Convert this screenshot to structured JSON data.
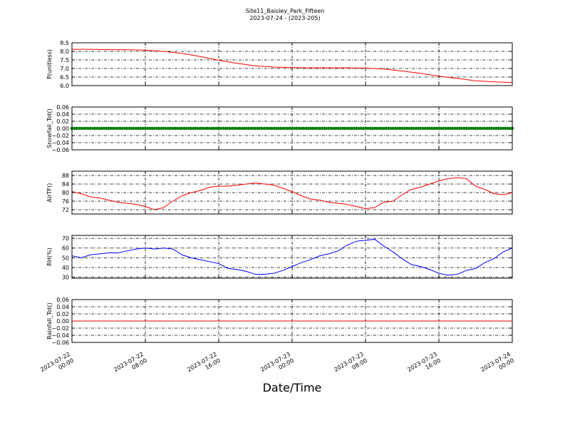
{
  "figure": {
    "title": "Site11_Baisley_Park_Fifteen",
    "subtitle": "2023-07-24 - (2023-205)",
    "xlabel": "Date/Time"
  },
  "x_ticks": [
    [
      "2023-07-22",
      "00:00"
    ],
    [
      "2023-07-22",
      "08:00"
    ],
    [
      "2023-07-22",
      "16:00"
    ],
    [
      "2023-07-23",
      "00:00"
    ],
    [
      "2023-07-23",
      "08:00"
    ],
    [
      "2023-07-23",
      "16:00"
    ],
    [
      "2023-07-24",
      "00:00"
    ]
  ],
  "colors": {
    "p": "#ff0000",
    "snow": "#008000",
    "air": "#ff0000",
    "rh": "#0000ff",
    "rain": "#ff0000"
  },
  "chart_data": [
    {
      "type": "line",
      "ylabel": "P(unitless)",
      "ylim": [
        6.0,
        8.5
      ],
      "yticks": [
        "6.0",
        "6.5",
        "7.0",
        "7.5",
        "8.0",
        "8.5"
      ],
      "x_hours": [
        0,
        2,
        4,
        6,
        8,
        10,
        12,
        14,
        16,
        18,
        20,
        22,
        24,
        26,
        28,
        30,
        32,
        34,
        36,
        38,
        40,
        42,
        44,
        46,
        48
      ],
      "series": [
        {
          "values": [
            8.12,
            8.12,
            8.1,
            8.1,
            8.07,
            8.0,
            7.88,
            7.7,
            7.48,
            7.3,
            7.15,
            7.08,
            7.05,
            7.04,
            7.04,
            7.04,
            7.02,
            6.97,
            6.85,
            6.72,
            6.55,
            6.42,
            6.28,
            6.22,
            6.18
          ]
        }
      ],
      "grid": true
    },
    {
      "type": "scatter",
      "ylabel": "Snowfall_Tot()",
      "ylim": [
        -0.06,
        0.06
      ],
      "yticks": [
        "−0.06",
        "−0.04",
        "−0.02",
        "0.00",
        "0.02",
        "0.04",
        "0.06"
      ],
      "x_hours": [
        0,
        48
      ],
      "series": [
        {
          "values": [
            0.0,
            0.0
          ]
        }
      ],
      "grid": true
    },
    {
      "type": "line",
      "ylabel": "AirTF()",
      "ylim": [
        70,
        90
      ],
      "yticks": [
        "72",
        "76",
        "80",
        "84",
        "88"
      ],
      "x_hours": [
        0,
        1,
        2,
        3,
        4,
        5,
        6,
        7,
        8,
        9,
        10,
        11,
        12,
        13,
        14,
        15,
        16,
        17,
        18,
        19,
        20,
        21,
        22,
        23,
        24,
        25,
        26,
        27,
        28,
        29,
        30,
        31,
        32,
        33,
        34,
        35,
        36,
        37,
        38,
        39,
        40,
        41,
        42,
        43,
        44,
        45,
        46,
        47,
        48
      ],
      "series": [
        {
          "values": [
            80.5,
            79.5,
            78,
            77.5,
            76.5,
            75.5,
            75,
            74.5,
            73.5,
            72,
            73,
            76,
            78.5,
            80,
            81,
            82.5,
            83,
            83,
            83.5,
            84,
            84.5,
            84,
            83.5,
            82,
            80.5,
            78.5,
            77,
            76.5,
            75.5,
            75,
            74.5,
            73.5,
            72.5,
            73,
            75.5,
            76,
            79,
            81.5,
            82.5,
            84,
            85.5,
            86.5,
            87,
            86.5,
            83,
            81.5,
            79.5,
            79,
            80
          ]
        }
      ],
      "grid": true
    },
    {
      "type": "line",
      "ylabel": "RH(%)",
      "ylim": [
        29,
        73
      ],
      "yticks": [
        "30",
        "40",
        "50",
        "60",
        "70"
      ],
      "x_hours": [
        0,
        1,
        2,
        3,
        4,
        5,
        6,
        7,
        8,
        9,
        10,
        11,
        12,
        13,
        14,
        15,
        16,
        17,
        18,
        19,
        20,
        21,
        22,
        23,
        24,
        25,
        26,
        27,
        28,
        29,
        30,
        31,
        32,
        33,
        34,
        35,
        36,
        37,
        38,
        39,
        40,
        41,
        42,
        43,
        44,
        45,
        46,
        47,
        48
      ],
      "series": [
        {
          "values": [
            52,
            50,
            53,
            54,
            55,
            55,
            57,
            59,
            60,
            59,
            60,
            59,
            53,
            50,
            48,
            46,
            44,
            39,
            38,
            36,
            33,
            33,
            34,
            37,
            41,
            45,
            48,
            52,
            54,
            57,
            63,
            67,
            68,
            69,
            62,
            56,
            49,
            43,
            41,
            38,
            34,
            32,
            33,
            37,
            39,
            45,
            49,
            56,
            60
          ]
        }
      ],
      "grid": true
    },
    {
      "type": "line",
      "ylabel": "Rainfall_Tot()",
      "ylim": [
        -0.06,
        0.06
      ],
      "yticks": [
        "−0.06",
        "−0.04",
        "−0.02",
        "0.00",
        "0.02",
        "0.04",
        "0.06"
      ],
      "x_hours": [
        0,
        48
      ],
      "series": [
        {
          "values": [
            0.0,
            0.0
          ]
        }
      ],
      "grid": true
    }
  ]
}
